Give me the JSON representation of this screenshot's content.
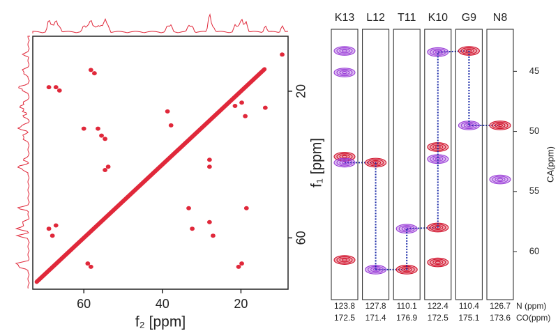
{
  "chart_data": [
    {
      "type": "spectrum2d",
      "xlabel": "f₂ [ppm]",
      "ylabel": "f₁ [ppm]",
      "xlim": [
        73,
        8
      ],
      "ylim": [
        5,
        74
      ],
      "xticks": [
        60,
        40,
        20
      ],
      "yticks": [
        20,
        60
      ],
      "color": "#e0283a",
      "diagonal": {
        "x": [
          72,
          62,
          45,
          30,
          14
        ],
        "y": [
          72,
          62,
          45,
          30,
          14
        ]
      },
      "cross_peaks": {
        "x": [
          68.9,
          67.1,
          66.2,
          58.2,
          57.3,
          60,
          56.4,
          55.5,
          54.6,
          53.8,
          54.6,
          38.7,
          37.8,
          28,
          28,
          21.5,
          19.8,
          18.9,
          18.6,
          33.3,
          32.4,
          28,
          27.1,
          68.9,
          68,
          67.1,
          59,
          58.2,
          19.8,
          20.6,
          13.8,
          9.5
        ],
        "y": [
          18.9,
          18.9,
          19.8,
          14.2,
          15.1,
          30.2,
          30.2,
          32.1,
          33,
          40.6,
          41.5,
          25.5,
          29.3,
          38.7,
          40.6,
          24,
          23.1,
          26.8,
          51.9,
          51.9,
          57.5,
          55.7,
          59.4,
          57.5,
          59.4,
          56.6,
          67,
          67.9,
          67,
          67.9,
          24.5,
          10
        ]
      }
    },
    {
      "type": "strips",
      "ylabel": "CA(ppm)",
      "ylim": [
        41.5,
        64
      ],
      "yticks": [
        45,
        50,
        55,
        60
      ],
      "n_label": "N (ppm)",
      "co_label": "CO(ppm)",
      "red_color": "#d0102a",
      "purple_color": "#9b3fd8",
      "link_color": "#1a2aa8",
      "strips": [
        {
          "label": "K13",
          "n": "123.8",
          "co": "172.5",
          "red": [
            52.1,
            60.7
          ],
          "purple": [
            43.3,
            45.1,
            52.6
          ]
        },
        {
          "label": "L12",
          "n": "127.8",
          "co": "171.4",
          "red": [
            52.6
          ],
          "purple": [
            61.5
          ]
        },
        {
          "label": "T11",
          "n": "110.1",
          "co": "176.9",
          "red": [
            61.5
          ],
          "purple": [
            58.1
          ]
        },
        {
          "label": "K10",
          "n": "122.4",
          "co": "172.5",
          "red": [
            51.3,
            58.0,
            60.9
          ],
          "purple": [
            43.4,
            52.3
          ]
        },
        {
          "label": "G9",
          "n": "110.4",
          "co": "175.1",
          "red": [
            43.3
          ],
          "purple": [
            49.5
          ]
        },
        {
          "label": "N8",
          "n": "126.7",
          "co": "173.6",
          "red": [
            49.5
          ],
          "purple": [
            54.0
          ]
        }
      ]
    }
  ]
}
